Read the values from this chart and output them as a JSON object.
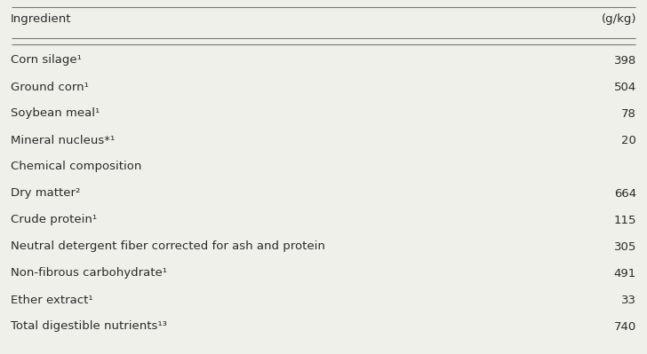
{
  "header_left": "Ingredient",
  "header_right": "(g/kg)",
  "rows": [
    {
      "label": "Corn silage¹",
      "value": "398"
    },
    {
      "label": "Ground corn¹",
      "value": "504"
    },
    {
      "label": "Soybean meal¹",
      "value": "78"
    },
    {
      "label": "Mineral nucleus*¹",
      "value": "20"
    },
    {
      "label": "Chemical composition",
      "value": ""
    },
    {
      "label": "Dry matter²",
      "value": "664"
    },
    {
      "label": "Crude protein¹",
      "value": "115"
    },
    {
      "label": "Neutral detergent fiber corrected for ash and protein",
      "value": "305"
    },
    {
      "label": "Non-fibrous carbohydrate¹",
      "value": "491"
    },
    {
      "label": "Ether extract¹",
      "value": "33"
    },
    {
      "label": "Total digestible nutrients¹³",
      "value": "740"
    }
  ],
  "bg_color": "#f0f0eb",
  "text_color": "#2a2a2a",
  "font_size": 9.5,
  "header_font_size": 9.5,
  "line_color": "#777777",
  "fig_width": 7.28,
  "fig_height": 3.99,
  "dpi": 100
}
